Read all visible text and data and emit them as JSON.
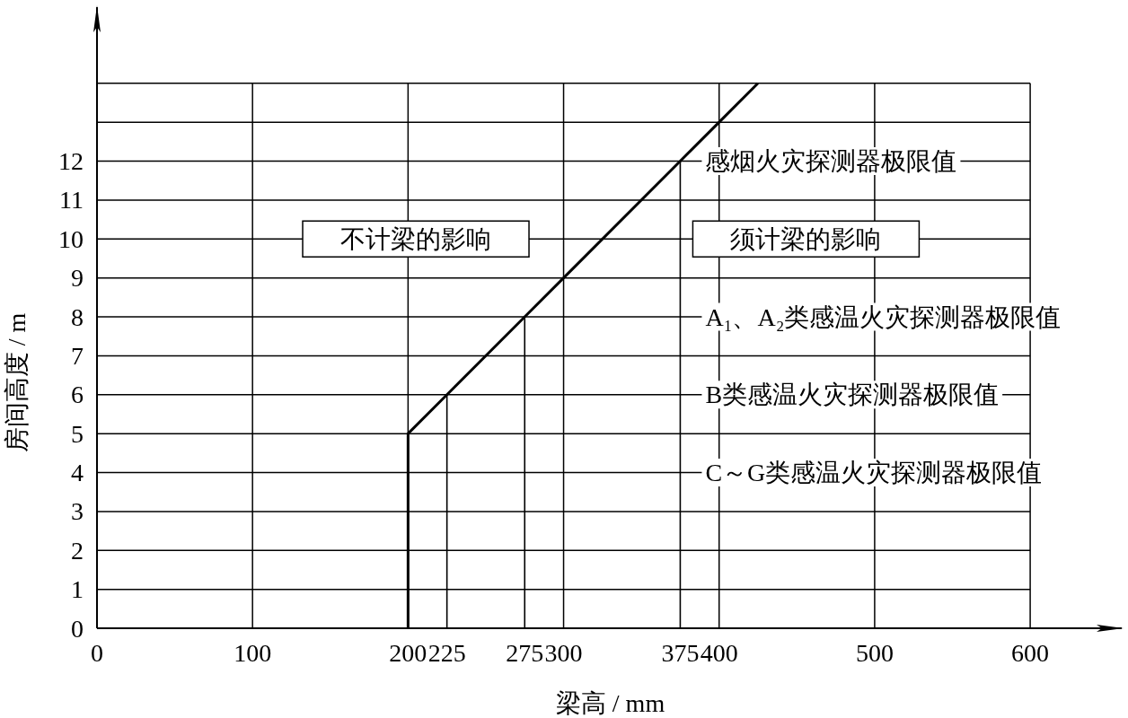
{
  "chart_data": {
    "type": "line",
    "xlabel": "梁高 / mm",
    "ylabel": "房间高度 / m",
    "xlim": [
      0,
      660
    ],
    "ylim": [
      0,
      16
    ],
    "xticks": [
      0,
      100,
      200,
      225,
      275,
      300,
      375,
      400,
      500,
      600
    ],
    "yticks": [
      0,
      1,
      2,
      3,
      4,
      5,
      6,
      7,
      8,
      9,
      10,
      11,
      12,
      {
        "value": 13,
        "label": null
      },
      {
        "value": 14,
        "label": null
      }
    ],
    "grid": true,
    "series": [
      {
        "color": "#000000",
        "x": [
          200,
          200,
          225,
          275,
          300,
          375,
          400,
          425
        ],
        "values": [
          0,
          5,
          6,
          8,
          9,
          12,
          13,
          14
        ]
      },
      {
        "color": "#000000",
        "x": [
          225,
          225,
          null,
          275,
          275,
          null,
          375,
          375,
          375,
          375,
          375
        ],
        "values": [
          0,
          6,
          null,
          0,
          8,
          null,
          0,
          4,
          6,
          8,
          12
        ]
      }
    ],
    "annotations": [
      {
        "text": "感烟火灾探测器极限值",
        "x": 375,
        "y": 12
      },
      "不计梁的影响",
      "须计梁的影响",
      "A₁、A₂类感温火灾探测器极限值",
      "B类感温火灾探测器极限值",
      "C～G类感温火灾探测器极限值"
    ]
  }
}
